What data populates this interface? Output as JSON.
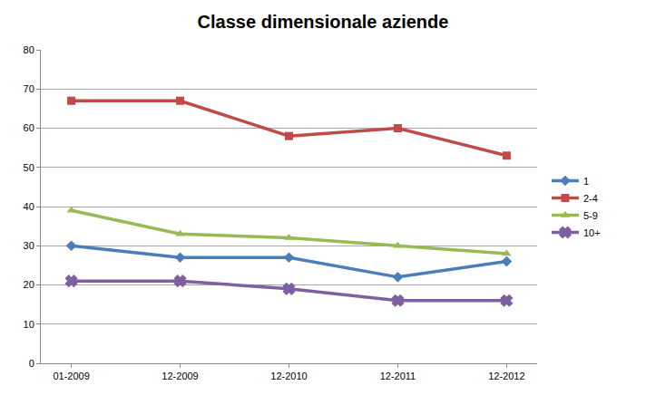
{
  "chart_data": {
    "type": "line",
    "title": "Classe dimensionale aziende",
    "categories": [
      "01-2009",
      "12-2009",
      "12-2010",
      "12-2011",
      "12-2012"
    ],
    "series": [
      {
        "name": "1",
        "color": "#4a7ebb",
        "marker": "diamond",
        "values": [
          30,
          27,
          27,
          22,
          26
        ]
      },
      {
        "name": "2-4",
        "color": "#be4b48",
        "marker": "square",
        "values": [
          67,
          67,
          58,
          60,
          53
        ]
      },
      {
        "name": "5-9",
        "color": "#98b954",
        "marker": "triangle",
        "values": [
          39,
          33,
          32,
          30,
          28
        ]
      },
      {
        "name": "10+",
        "color": "#7d60a0",
        "marker": "x",
        "values": [
          21,
          21,
          19,
          16,
          16
        ]
      }
    ],
    "ylim": [
      0,
      80
    ],
    "yticks": [
      0,
      10,
      20,
      30,
      40,
      50,
      60,
      70,
      80
    ],
    "grid": true,
    "legend": "right"
  }
}
